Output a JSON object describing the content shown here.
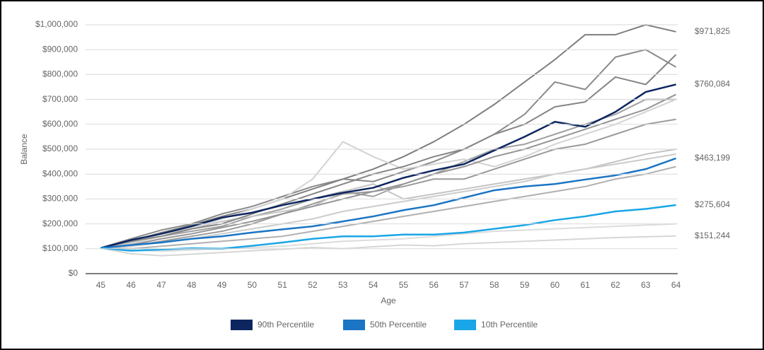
{
  "chart_data": {
    "type": "line",
    "x_label": "Age",
    "y_label": "Balance",
    "categories": [
      "45",
      "46",
      "47",
      "48",
      "49",
      "50",
      "51",
      "52",
      "53",
      "54",
      "55",
      "56",
      "57",
      "58",
      "59",
      "60",
      "61",
      "62",
      "63",
      "64"
    ],
    "ylim": [
      0,
      1000000
    ],
    "yticks": [
      {
        "value": 0,
        "label": "$0"
      },
      {
        "value": 100000,
        "label": "$100,000"
      },
      {
        "value": 200000,
        "label": "$200,000"
      },
      {
        "value": 300000,
        "label": "$300,000"
      },
      {
        "value": 400000,
        "label": "$400,000"
      },
      {
        "value": 500000,
        "label": "$500,000"
      },
      {
        "value": 600000,
        "label": "$600,000"
      },
      {
        "value": 700000,
        "label": "$700,000"
      },
      {
        "value": 800000,
        "label": "$800,000"
      },
      {
        "value": 900000,
        "label": "$900,000"
      },
      {
        "value": 1000000,
        "label": "$1,000,000"
      }
    ],
    "grid": true,
    "simulations": [
      {
        "color": "#7f7f7f",
        "values": [
          103000,
          130000,
          165000,
          195000,
          230000,
          260000,
          300000,
          340000,
          380000,
          420000,
          470000,
          530000,
          600000,
          680000,
          770000,
          860000,
          960000,
          960000,
          1000000,
          971825
        ]
      },
      {
        "color": "#d6d6d6",
        "values": [
          103000,
          80000,
          72000,
          78000,
          85000,
          92000,
          98000,
          105000,
          100000,
          108000,
          115000,
          112000,
          120000,
          125000,
          130000,
          135000,
          140000,
          145000,
          148000,
          151244
        ]
      },
      {
        "color": "#8a8a8a",
        "values": [
          103000,
          140000,
          175000,
          200000,
          240000,
          270000,
          310000,
          350000,
          380000,
          370000,
          410000,
          450000,
          500000,
          560000,
          640000,
          770000,
          740000,
          870000,
          900000,
          830000
        ]
      },
      {
        "color": "#a0a0a0",
        "values": [
          103000,
          120000,
          150000,
          170000,
          190000,
          230000,
          260000,
          300000,
          330000,
          310000,
          360000,
          400000,
          450000,
          500000,
          520000,
          560000,
          600000,
          640000,
          700000,
          700000
        ]
      },
      {
        "color": "#9a9a9a",
        "values": [
          103000,
          110000,
          130000,
          150000,
          170000,
          200000,
          240000,
          280000,
          320000,
          330000,
          350000,
          380000,
          380000,
          420000,
          460000,
          500000,
          520000,
          560000,
          600000,
          620000
        ]
      },
      {
        "color": "#c4c4c4",
        "values": [
          103000,
          125000,
          160000,
          180000,
          210000,
          230000,
          250000,
          270000,
          330000,
          360000,
          300000,
          320000,
          340000,
          360000,
          380000,
          400000,
          420000,
          450000,
          480000,
          500000
        ]
      },
      {
        "color": "#d3d3d3",
        "values": [
          103000,
          120000,
          150000,
          180000,
          220000,
          260000,
          300000,
          380000,
          530000,
          470000,
          420000,
          440000,
          460000,
          430000,
          470000,
          520000,
          560000,
          600000,
          650000,
          700000
        ]
      },
      {
        "color": "#b0b0b0",
        "values": [
          103000,
          100000,
          110000,
          120000,
          130000,
          140000,
          150000,
          170000,
          190000,
          210000,
          230000,
          250000,
          270000,
          290000,
          310000,
          330000,
          350000,
          380000,
          400000,
          430000
        ]
      },
      {
        "color": "#dcdcdc",
        "values": [
          103000,
          95000,
          90000,
          95000,
          100000,
          105000,
          110000,
          120000,
          130000,
          135000,
          140000,
          150000,
          160000,
          170000,
          175000,
          180000,
          185000,
          190000,
          195000,
          200000
        ]
      },
      {
        "color": "#858585",
        "values": [
          103000,
          130000,
          150000,
          180000,
          200000,
          240000,
          280000,
          320000,
          360000,
          400000,
          430000,
          470000,
          500000,
          560000,
          600000,
          670000,
          690000,
          790000,
          760000,
          880000
        ]
      },
      {
        "color": "#959595",
        "values": [
          103000,
          115000,
          140000,
          160000,
          185000,
          210000,
          240000,
          270000,
          300000,
          330000,
          360000,
          400000,
          430000,
          470000,
          500000,
          540000,
          580000,
          620000,
          660000,
          720000
        ]
      },
      {
        "color": "#cbcbcb",
        "values": [
          103000,
          110000,
          125000,
          140000,
          160000,
          180000,
          200000,
          220000,
          250000,
          270000,
          290000,
          310000,
          330000,
          350000,
          370000,
          400000,
          420000,
          440000,
          460000,
          480000
        ]
      }
    ],
    "series": [
      {
        "name": "90th Percentile",
        "color": "#0d2660",
        "values": [
          103000,
          135000,
          160000,
          190000,
          225000,
          245000,
          275000,
          300000,
          325000,
          345000,
          385000,
          415000,
          440000,
          495000,
          550000,
          610000,
          590000,
          650000,
          730000,
          760084
        ]
      },
      {
        "name": "50th Percentile",
        "color": "#1b75c4",
        "values": [
          103000,
          115000,
          125000,
          140000,
          150000,
          165000,
          178000,
          190000,
          210000,
          230000,
          255000,
          275000,
          305000,
          335000,
          350000,
          360000,
          378000,
          395000,
          420000,
          463199
        ]
      },
      {
        "name": "10th Percentile",
        "color": "#1aa6e6",
        "values": [
          103000,
          92000,
          97000,
          102000,
          100000,
          112000,
          125000,
          140000,
          150000,
          150000,
          157000,
          157000,
          165000,
          180000,
          195000,
          215000,
          230000,
          250000,
          260000,
          275604
        ]
      }
    ],
    "end_labels": [
      {
        "value": 971825,
        "label": "$971,825"
      },
      {
        "value": 760084,
        "label": "$760,084"
      },
      {
        "value": 463199,
        "label": "$463,199"
      },
      {
        "value": 275604,
        "label": "$275,604"
      },
      {
        "value": 151244,
        "label": "$151,244"
      }
    ]
  }
}
